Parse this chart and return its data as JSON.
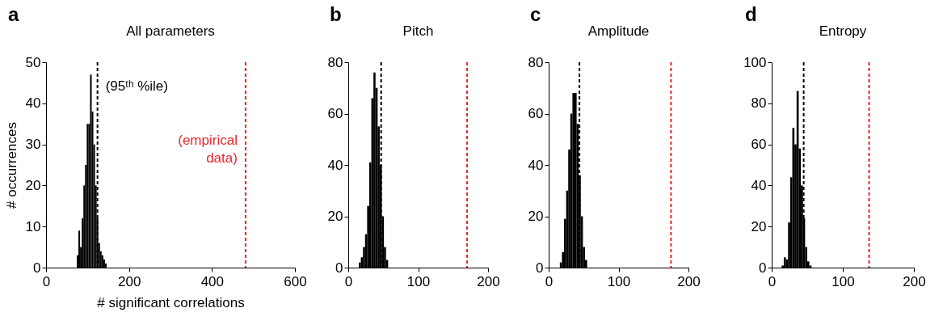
{
  "chart_data": [
    {
      "type": "histogram",
      "title": "All parameters",
      "xlabel": "# significant correlations",
      "ylabel": "# occurrences",
      "annotations": [
        "a"
      ],
      "color": "#000000",
      "bins": [
        74,
        78,
        82,
        86,
        90,
        94,
        98,
        102,
        106,
        110,
        114,
        118,
        122,
        126,
        130,
        134,
        138,
        142,
        146
      ],
      "values": [
        3,
        9,
        5,
        12,
        20,
        25,
        35,
        35,
        47,
        38,
        30,
        20,
        12,
        6,
        4,
        3,
        2,
        1
      ],
      "xlim": [
        0,
        600
      ],
      "xticks": [
        0,
        200,
        400,
        600
      ],
      "ylim": [
        0,
        50
      ],
      "yticks": [
        0,
        10,
        20,
        30,
        40,
        50
      ],
      "ref_lines": [
        {
          "axis": "x",
          "value": 124,
          "label": "(95ᵗʰ %ile)",
          "color": "#000000",
          "line_style": "dashed"
        },
        {
          "axis": "x",
          "value": 481,
          "label": "(empirical\ndata)",
          "color": "#e8262b",
          "line_style": "dashed"
        }
      ]
    },
    {
      "type": "histogram",
      "title": "Pitch",
      "annotations": [
        "b"
      ],
      "color": "#000000",
      "bins": [
        15,
        18,
        21,
        24,
        27,
        30,
        33,
        36,
        39,
        42,
        45,
        48,
        51,
        54,
        57
      ],
      "values": [
        2,
        4,
        8,
        13,
        24,
        41,
        66,
        76,
        70,
        55,
        40,
        20,
        8,
        3
      ],
      "xlim": [
        0,
        200
      ],
      "xticks": [
        0,
        100,
        200
      ],
      "ylim": [
        0,
        80
      ],
      "yticks": [
        0,
        20,
        40,
        60,
        80
      ],
      "ref_lines": [
        {
          "axis": "x",
          "value": 47,
          "color": "#000000",
          "line_style": "dashed"
        },
        {
          "axis": "x",
          "value": 170,
          "color": "#e8262b",
          "line_style": "dashed"
        }
      ]
    },
    {
      "type": "histogram",
      "title": "Amplitude",
      "annotations": [
        "c"
      ],
      "color": "#000000",
      "bins": [
        16,
        19,
        22,
        25,
        28,
        31,
        34,
        37,
        40,
        43,
        46,
        49,
        52,
        55
      ],
      "values": [
        2,
        6,
        19,
        30,
        46,
        60,
        68,
        68,
        56,
        36,
        20,
        8,
        3
      ],
      "xlim": [
        0,
        200
      ],
      "xticks": [
        0,
        100,
        200
      ],
      "ylim": [
        0,
        80
      ],
      "yticks": [
        0,
        20,
        40,
        60,
        80
      ],
      "ref_lines": [
        {
          "axis": "x",
          "value": 44,
          "color": "#000000",
          "line_style": "dashed"
        },
        {
          "axis": "x",
          "value": 175,
          "color": "#e8262b",
          "line_style": "dashed"
        }
      ]
    },
    {
      "type": "histogram",
      "title": "Entropy",
      "annotations": [
        "d"
      ],
      "color": "#000000",
      "bins": [
        14,
        17,
        20,
        23,
        26,
        29,
        32,
        35,
        38,
        41,
        44,
        47,
        50,
        53,
        56
      ],
      "values": [
        1,
        5,
        4,
        22,
        44,
        68,
        60,
        86,
        58,
        40,
        24,
        10,
        3,
        1
      ],
      "xlim": [
        0,
        200
      ],
      "xticks": [
        0,
        100,
        200
      ],
      "ylim": [
        0,
        100
      ],
      "yticks": [
        0,
        20,
        40,
        60,
        80,
        100
      ],
      "ref_lines": [
        {
          "axis": "x",
          "value": 45,
          "color": "#000000",
          "line_style": "dashed"
        },
        {
          "axis": "x",
          "value": 137,
          "color": "#e8262b",
          "line_style": "dashed"
        }
      ]
    }
  ]
}
